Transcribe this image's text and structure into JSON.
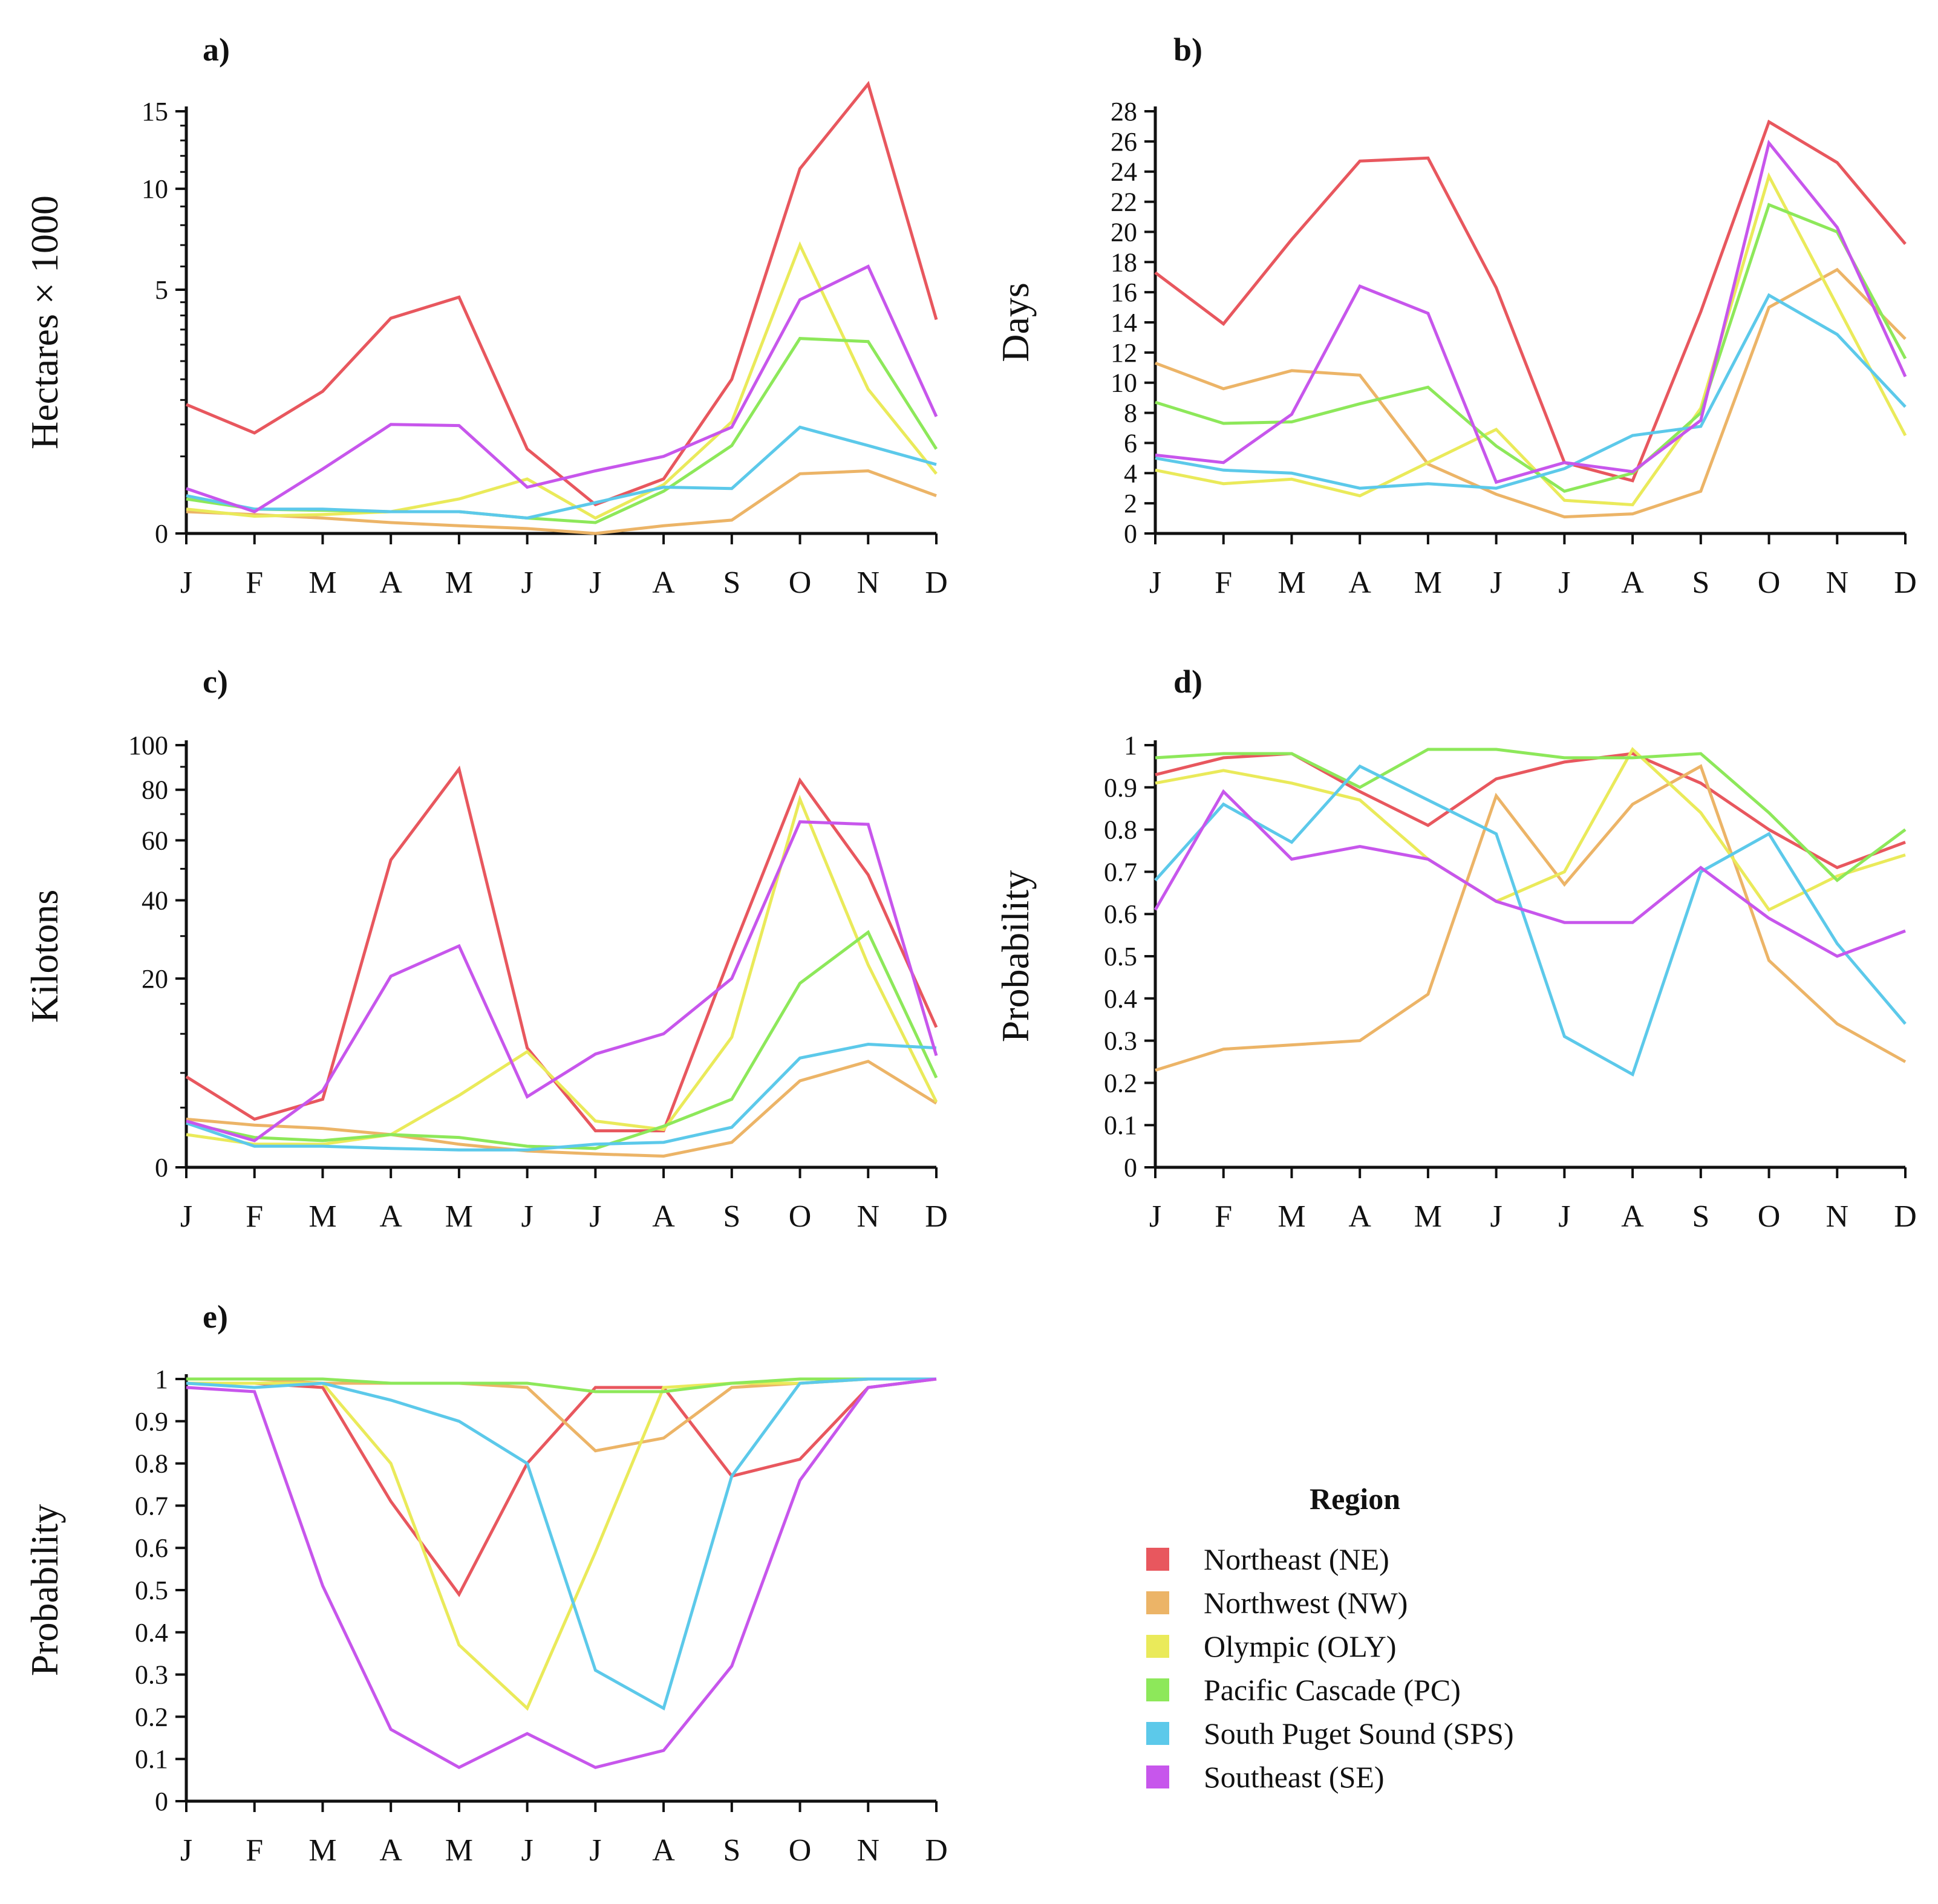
{
  "colors": {
    "NE": "#e8575e",
    "NW": "#ecb467",
    "OLY": "#eaea5a",
    "PC": "#8de85a",
    "SPS": "#5cc9ea",
    "SE": "#c756ec"
  },
  "legend": {
    "title": "Region",
    "items": [
      {
        "key": "NE",
        "label": "Northeast (NE)"
      },
      {
        "key": "NW",
        "label": "Northwest (NW)"
      },
      {
        "key": "OLY",
        "label": "Olympic (OLY)"
      },
      {
        "key": "PC",
        "label": "Pacific Cascade (PC)"
      },
      {
        "key": "SPS",
        "label": "South Puget Sound (SPS)"
      },
      {
        "key": "SE",
        "label": "Southeast (SE)"
      }
    ]
  },
  "chart_data": [
    {
      "id": "a",
      "panel_label": "a)",
      "type": "line",
      "ylabel": "Hectares × 1000",
      "yscale": "sqrt",
      "ylim": [
        0,
        15
      ],
      "yticks": [
        0,
        5,
        10,
        15
      ],
      "ytick_labels": [
        "0",
        "5",
        "10",
        "15"
      ],
      "minor_ticks": [
        0.5,
        1,
        1.5,
        2,
        2.5,
        3,
        3.5,
        4,
        4.5,
        6,
        7,
        8,
        9,
        11,
        12,
        13,
        14
      ],
      "categories": [
        "J",
        "F",
        "M",
        "A",
        "M",
        "J",
        "J",
        "A",
        "S",
        "O",
        "N",
        "D"
      ],
      "series": [
        {
          "key": "NE",
          "name": "Northeast (NE)",
          "values": [
            1.4,
            0.85,
            1.7,
            3.9,
            4.7,
            0.6,
            0.07,
            0.25,
            2.0,
            11.2,
            17.0,
            3.85
          ]
        },
        {
          "key": "NW",
          "name": "Northwest (NW)",
          "values": [
            0.04,
            0.03,
            0.02,
            0.01,
            0.005,
            0.002,
            0.0,
            0.005,
            0.015,
            0.3,
            0.33,
            0.12
          ]
        },
        {
          "key": "OLY",
          "name": "Olympic (OLY)",
          "values": [
            0.05,
            0.025,
            0.03,
            0.04,
            0.1,
            0.25,
            0.02,
            0.2,
            1.05,
            7.0,
            1.75,
            0.3
          ]
        },
        {
          "key": "PC",
          "name": "Pacific Cascade (PC)",
          "values": [
            0.1,
            0.05,
            0.045,
            0.04,
            0.04,
            0.02,
            0.01,
            0.15,
            0.65,
            3.2,
            3.1,
            0.6
          ]
        },
        {
          "key": "SPS",
          "name": "South Puget Sound (SPS)",
          "values": [
            0.12,
            0.05,
            0.05,
            0.04,
            0.04,
            0.02,
            0.08,
            0.18,
            0.17,
            0.95,
            0.65,
            0.4
          ]
        },
        {
          "key": "SE",
          "name": "Southeast (SE)",
          "values": [
            0.17,
            0.04,
            0.35,
            1.0,
            0.98,
            0.18,
            0.33,
            0.5,
            0.95,
            4.6,
            6.0,
            1.15
          ]
        }
      ]
    },
    {
      "id": "b",
      "panel_label": "b)",
      "type": "line",
      "ylabel": "Days",
      "yscale": "linear",
      "ylim": [
        0,
        28
      ],
      "yticks": [
        0,
        2,
        4,
        6,
        8,
        10,
        12,
        14,
        16,
        18,
        20,
        22,
        24,
        26,
        28
      ],
      "ytick_labels": [
        "0",
        "2",
        "4",
        "6",
        "8",
        "10",
        "12",
        "14",
        "16",
        "18",
        "20",
        "22",
        "24",
        "26",
        "28"
      ],
      "minor_ticks": [],
      "categories": [
        "J",
        "F",
        "M",
        "A",
        "M",
        "J",
        "J",
        "A",
        "S",
        "O",
        "N",
        "D"
      ],
      "series": [
        {
          "key": "NE",
          "name": "Northeast (NE)",
          "values": [
            17.3,
            13.9,
            19.5,
            24.7,
            24.9,
            16.3,
            4.7,
            3.5,
            14.7,
            27.3,
            24.6,
            19.2
          ]
        },
        {
          "key": "NW",
          "name": "Northwest (NW)",
          "values": [
            11.3,
            9.6,
            10.8,
            10.5,
            4.6,
            2.6,
            1.1,
            1.3,
            2.8,
            15.0,
            17.5,
            12.9
          ]
        },
        {
          "key": "OLY",
          "name": "Olympic (OLY)",
          "values": [
            4.2,
            3.3,
            3.6,
            2.5,
            4.7,
            6.9,
            2.2,
            1.9,
            8.3,
            23.7,
            15.1,
            6.5
          ]
        },
        {
          "key": "PC",
          "name": "Pacific Cascade (PC)",
          "values": [
            8.7,
            7.3,
            7.4,
            8.6,
            9.7,
            5.8,
            2.8,
            4.0,
            8.0,
            21.8,
            20.0,
            11.6
          ]
        },
        {
          "key": "SPS",
          "name": "South Puget Sound (SPS)",
          "values": [
            5.0,
            4.2,
            4.0,
            3.0,
            3.3,
            3.0,
            4.3,
            6.5,
            7.1,
            15.8,
            13.2,
            8.4
          ]
        },
        {
          "key": "SE",
          "name": "Southeast (SE)",
          "values": [
            5.2,
            4.7,
            7.9,
            16.4,
            14.6,
            3.4,
            4.7,
            4.1,
            7.5,
            25.9,
            20.3,
            10.4
          ]
        }
      ]
    },
    {
      "id": "c",
      "panel_label": "c)",
      "type": "line",
      "ylabel": "Kilotons",
      "yscale": "sqrt",
      "ylim": [
        0,
        100
      ],
      "yticks": [
        0,
        20,
        40,
        60,
        80,
        100
      ],
      "ytick_labels": [
        "0",
        "20",
        "40",
        "60",
        "80",
        "100"
      ],
      "minor_ticks": [
        2,
        5,
        10,
        15,
        30,
        50,
        70,
        90
      ],
      "categories": [
        "J",
        "F",
        "M",
        "A",
        "M",
        "J",
        "J",
        "A",
        "S",
        "O",
        "N",
        "D"
      ],
      "series": [
        {
          "key": "NE",
          "name": "Northeast (NE)",
          "values": [
            4.6,
            1.3,
            2.6,
            53.0,
            89.0,
            8.0,
            0.75,
            0.75,
            26.0,
            84.0,
            48.0,
            11.0
          ]
        },
        {
          "key": "NW",
          "name": "Northwest (NW)",
          "values": [
            1.3,
            1.0,
            0.85,
            0.6,
            0.3,
            0.15,
            0.1,
            0.07,
            0.35,
            4.2,
            6.3,
            2.3
          ]
        },
        {
          "key": "OLY",
          "name": "Olympic (OLY)",
          "values": [
            0.6,
            0.3,
            0.3,
            0.6,
            2.9,
            7.5,
            1.2,
            0.8,
            9.5,
            76.0,
            23.0,
            2.4
          ]
        },
        {
          "key": "PC",
          "name": "Pacific Cascade (PC)",
          "values": [
            1.1,
            0.5,
            0.4,
            0.6,
            0.5,
            0.25,
            0.2,
            0.95,
            2.6,
            19.0,
            31.0,
            4.5
          ]
        },
        {
          "key": "SPS",
          "name": "South Puget Sound (SPS)",
          "values": [
            1.1,
            0.25,
            0.25,
            0.2,
            0.17,
            0.17,
            0.3,
            0.35,
            0.9,
            6.7,
            8.5,
            8.0
          ]
        },
        {
          "key": "SE",
          "name": "Southeast (SE)",
          "values": [
            1.2,
            0.4,
            3.3,
            20.5,
            27.5,
            2.8,
            7.2,
            10.0,
            20.0,
            67.0,
            66.0,
            7.0
          ]
        }
      ]
    },
    {
      "id": "d",
      "panel_label": "d)",
      "type": "line",
      "ylabel": "Probability",
      "yscale": "linear",
      "ylim": [
        0,
        1
      ],
      "yticks": [
        0,
        0.1,
        0.2,
        0.3,
        0.4,
        0.5,
        0.6,
        0.7,
        0.8,
        0.9,
        1
      ],
      "ytick_labels": [
        "0",
        "0.1",
        "0.2",
        "0.3",
        "0.4",
        "0.5",
        "0.6",
        "0.7",
        "0.8",
        "0.9",
        "1"
      ],
      "minor_ticks": [],
      "categories": [
        "J",
        "F",
        "M",
        "A",
        "M",
        "J",
        "J",
        "A",
        "S",
        "O",
        "N",
        "D"
      ],
      "series": [
        {
          "key": "NE",
          "name": "Northeast (NE)",
          "values": [
            0.93,
            0.97,
            0.98,
            0.89,
            0.81,
            0.92,
            0.96,
            0.98,
            0.91,
            0.8,
            0.71,
            0.77
          ]
        },
        {
          "key": "NW",
          "name": "Northwest (NW)",
          "values": [
            0.23,
            0.28,
            0.29,
            0.3,
            0.41,
            0.88,
            0.67,
            0.86,
            0.95,
            0.49,
            0.34,
            0.25
          ]
        },
        {
          "key": "OLY",
          "name": "Olympic (OLY)",
          "values": [
            0.91,
            0.94,
            0.91,
            0.87,
            0.73,
            0.63,
            0.7,
            0.99,
            0.84,
            0.61,
            0.69,
            0.74
          ]
        },
        {
          "key": "PC",
          "name": "Pacific Cascade (PC)",
          "values": [
            0.97,
            0.98,
            0.98,
            0.9,
            0.99,
            0.99,
            0.97,
            0.97,
            0.98,
            0.84,
            0.68,
            0.8
          ]
        },
        {
          "key": "SPS",
          "name": "South Puget Sound (SPS)",
          "values": [
            0.68,
            0.86,
            0.77,
            0.95,
            0.87,
            0.79,
            0.31,
            0.22,
            0.7,
            0.79,
            0.53,
            0.34
          ]
        },
        {
          "key": "SE",
          "name": "Southeast (SE)",
          "values": [
            0.61,
            0.89,
            0.73,
            0.76,
            0.73,
            0.63,
            0.58,
            0.58,
            0.71,
            0.59,
            0.5,
            0.56
          ]
        }
      ]
    },
    {
      "id": "e",
      "panel_label": "e)",
      "type": "line",
      "ylabel": "Probability",
      "yscale": "linear",
      "ylim": [
        0,
        1
      ],
      "yticks": [
        0,
        0.1,
        0.2,
        0.3,
        0.4,
        0.5,
        0.6,
        0.7,
        0.8,
        0.9,
        1
      ],
      "ytick_labels": [
        "0",
        "0.1",
        "0.2",
        "0.3",
        "0.4",
        "0.5",
        "0.6",
        "0.7",
        "0.8",
        "0.9",
        "1"
      ],
      "minor_ticks": [],
      "categories": [
        "J",
        "F",
        "M",
        "A",
        "M",
        "J",
        "J",
        "A",
        "S",
        "O",
        "N",
        "D"
      ],
      "series": [
        {
          "key": "NE",
          "name": "Northeast (NE)",
          "values": [
            0.99,
            0.99,
            0.98,
            0.71,
            0.49,
            0.8,
            0.98,
            0.98,
            0.77,
            0.81,
            0.98,
            1.0
          ]
        },
        {
          "key": "NW",
          "name": "Northwest (NW)",
          "values": [
            1.0,
            1.0,
            0.99,
            0.99,
            0.99,
            0.98,
            0.83,
            0.86,
            0.98,
            0.99,
            1.0,
            1.0
          ]
        },
        {
          "key": "OLY",
          "name": "Olympic (OLY)",
          "values": [
            0.99,
            0.99,
            0.99,
            0.8,
            0.37,
            0.22,
            0.59,
            0.98,
            0.99,
            0.99,
            1.0,
            1.0
          ]
        },
        {
          "key": "PC",
          "name": "Pacific Cascade (PC)",
          "values": [
            1.0,
            1.0,
            1.0,
            0.99,
            0.99,
            0.99,
            0.97,
            0.97,
            0.99,
            1.0,
            1.0,
            1.0
          ]
        },
        {
          "key": "SPS",
          "name": "South Puget Sound (SPS)",
          "values": [
            0.99,
            0.98,
            0.99,
            0.95,
            0.9,
            0.8,
            0.31,
            0.22,
            0.77,
            0.99,
            1.0,
            1.0
          ]
        },
        {
          "key": "SE",
          "name": "Southeast (SE)",
          "values": [
            0.98,
            0.97,
            0.51,
            0.17,
            0.08,
            0.16,
            0.08,
            0.12,
            0.32,
            0.76,
            0.98,
            1.0
          ]
        }
      ]
    }
  ]
}
